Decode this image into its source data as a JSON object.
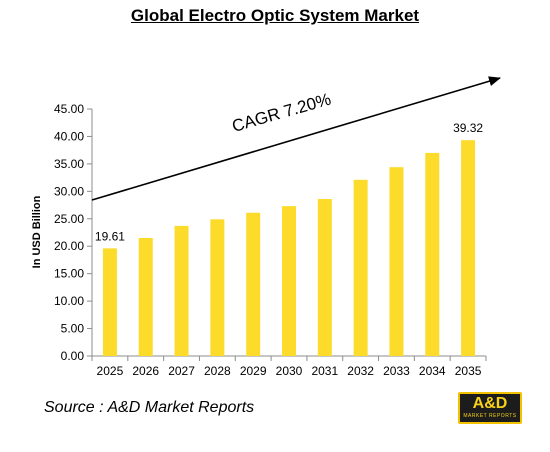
{
  "chart_data": {
    "type": "bar",
    "title": "Global Electro Optic System Market",
    "ylabel": "In USD Billion",
    "xlabel": "",
    "ylim": [
      0,
      45
    ],
    "yticks": [
      "0.00",
      "5.00",
      "10.00",
      "15.00",
      "20.00",
      "25.00",
      "30.00",
      "35.00",
      "40.00",
      "45.00"
    ],
    "categories": [
      "2025",
      "2026",
      "2027",
      "2028",
      "2029",
      "2030",
      "2031",
      "2032",
      "2033",
      "2034",
      "2035"
    ],
    "values": [
      19.61,
      21.5,
      23.7,
      24.9,
      26.1,
      27.3,
      28.6,
      32.1,
      34.4,
      37.0,
      39.32
    ],
    "data_labels": {
      "first": "19.61",
      "last": "39.32"
    },
    "bar_color": "#fcdb2a",
    "annotation": "CAGR 7.20%",
    "grid": false,
    "legend": "none"
  },
  "footer": {
    "source": "Source : A&D Market Reports",
    "logo_text": "A&D",
    "logo_subtext": "MARKET REPORTS"
  }
}
